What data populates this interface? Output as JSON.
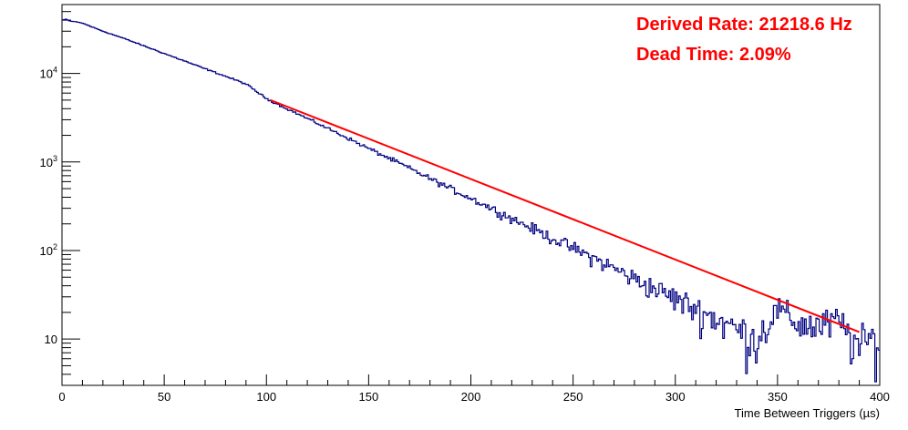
{
  "chart_data": {
    "type": "histogram",
    "title": "",
    "xlabel": "Time Between Triggers (µs)",
    "ylabel": "",
    "xlim": [
      0,
      400
    ],
    "ylim": [
      3,
      60000
    ],
    "yscale": "log",
    "x_ticks": [
      0,
      50,
      100,
      150,
      200,
      250,
      300,
      350,
      400
    ],
    "x_tick_labels": [
      "0",
      "50",
      "100",
      "150",
      "200",
      "250",
      "300",
      "350",
      "400"
    ],
    "y_ticks": [
      {
        "value": 10,
        "base": "10",
        "exp": ""
      },
      {
        "value": 100,
        "base": "10",
        "exp": "2"
      },
      {
        "value": 1000,
        "base": "10",
        "exp": "3"
      },
      {
        "value": 10000,
        "base": "10",
        "exp": "4"
      }
    ],
    "grid": false,
    "series": [
      {
        "kind": "histogram",
        "color": "#000080",
        "x": [
          0,
          2,
          4,
          6,
          10,
          20,
          30,
          40,
          50,
          60,
          70,
          80,
          90,
          100,
          110,
          120,
          130,
          140,
          150,
          160,
          170,
          180,
          190,
          200,
          210,
          220,
          230,
          240,
          250,
          260,
          270,
          280,
          290,
          300,
          310,
          320,
          330,
          340,
          350,
          360,
          370,
          380,
          390,
          395,
          400
        ],
        "values": [
          40000,
          41000,
          39000,
          38500,
          37000,
          30000,
          25000,
          20500,
          16800,
          13800,
          11300,
          9300,
          7600,
          5200,
          4000,
          3100,
          2400,
          1850,
          1420,
          1100,
          850,
          650,
          500,
          390,
          300,
          230,
          178,
          137,
          106,
          82,
          63,
          48,
          37,
          29,
          22,
          17,
          13,
          10,
          22,
          15,
          14,
          16,
          8,
          10,
          9
        ]
      },
      {
        "kind": "fit",
        "color": "#ff0000",
        "x_range": [
          102,
          390
        ],
        "y_at_range": [
          5000,
          12
        ]
      }
    ],
    "annotations": [
      {
        "text": "Derived Rate: 21218.6 Hz",
        "color": "#ff0000"
      },
      {
        "text": "Dead Time: 2.09%",
        "color": "#ff0000"
      }
    ]
  }
}
